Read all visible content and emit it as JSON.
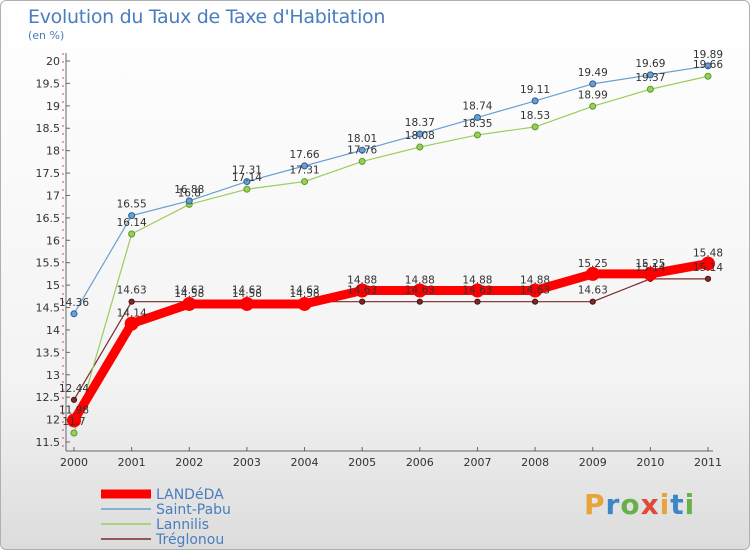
{
  "chart_data": {
    "type": "line",
    "title": "Evolution du Taux de Taxe d'Habitation",
    "subtitle": "(en %)",
    "x": [
      "2000",
      "2001",
      "2002",
      "2003",
      "2004",
      "2005",
      "2006",
      "2007",
      "2008",
      "2009",
      "2010",
      "2011"
    ],
    "ylim": [
      11.5,
      20
    ],
    "yticks": [
      "11.5",
      "12",
      "12.5",
      "13",
      "13.5",
      "14",
      "14.5",
      "15",
      "15.5",
      "16",
      "16.5",
      "17",
      "17.5",
      "18",
      "18.5",
      "19",
      "19.5",
      "20"
    ],
    "grid": false,
    "legend_position": "bottom-left",
    "series": [
      {
        "name": "LANDéDA",
        "color": "#ff0000",
        "values": [
          11.98,
          14.14,
          14.58,
          14.58,
          14.58,
          14.88,
          14.88,
          14.88,
          14.88,
          15.25,
          15.25,
          15.48
        ],
        "labels": [
          "11.98",
          "14.14",
          "14.58",
          "14.58",
          "14.58",
          "14.88",
          "14.88",
          "14.88",
          "14.88",
          "15.25",
          "15.25",
          "15.48"
        ]
      },
      {
        "name": "Saint-Pabu",
        "color": "#6a9fd0",
        "values": [
          14.36,
          16.55,
          16.88,
          17.31,
          17.66,
          18.01,
          18.37,
          18.74,
          19.11,
          19.49,
          19.69,
          19.89
        ],
        "labels": [
          "14.36",
          "16.55",
          "16.88",
          "17.31",
          "17.66",
          "18.01",
          "18.37",
          "18.74",
          "19.11",
          "19.49",
          "19.69",
          "19.89"
        ]
      },
      {
        "name": "Lannilis",
        "color": "#9acd5a",
        "values": [
          11.7,
          16.14,
          16.8,
          17.14,
          17.31,
          17.76,
          18.08,
          18.35,
          18.53,
          18.99,
          19.37,
          19.66
        ],
        "labels": [
          "11.7",
          "16.14",
          "16.8",
          "17.14",
          "17.31",
          "17.76",
          "18.08",
          "18.35",
          "18.53",
          "18.99",
          "19.37",
          "19.66"
        ]
      },
      {
        "name": "Tréglonou",
        "color": "#7a2b2b",
        "values": [
          12.44,
          14.63,
          14.63,
          14.63,
          14.63,
          14.63,
          14.63,
          14.63,
          14.63,
          14.63,
          15.14,
          15.14
        ],
        "labels": [
          "12.44",
          "14.63",
          "14.63",
          "14.63",
          "14.63",
          "14.63",
          "14.63",
          "14.63",
          "14.63",
          "14.63",
          "15.14",
          "15.14"
        ]
      }
    ]
  },
  "logo": {
    "letters": [
      "P",
      "r",
      "o",
      "x",
      "i",
      "t",
      "i"
    ]
  }
}
